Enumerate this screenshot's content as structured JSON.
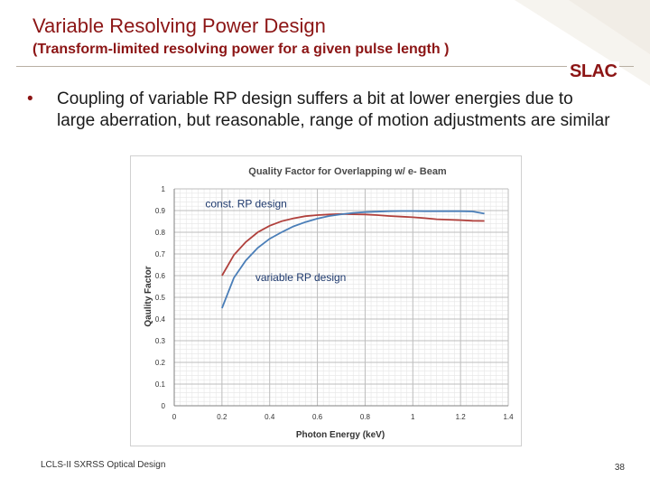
{
  "slide": {
    "title": "Variable Resolving Power Design",
    "subtitle": "(Transform-limited resolving power for a given pulse length )",
    "logo": "SLAC",
    "bullet": "Coupling of variable RP design suffers a bit at lower energies due to large aberration, but reasonable, range of motion adjustments are similar",
    "bullet_marker": "•",
    "footer": "LCLS-II SXRSS Optical Design",
    "page_number": "38"
  },
  "colors": {
    "brand": "#8c1515",
    "series_const": "#b0403c",
    "series_variable": "#4a7eb8"
  },
  "chart_data": {
    "type": "line",
    "title": "Quality Factor for Overlapping w/ e- Beam",
    "xlabel": "Photon Energy (keV)",
    "ylabel": "Qaulity Factor",
    "xlim": [
      0,
      1.4
    ],
    "ylim": [
      0,
      1
    ],
    "x_ticks": [
      "0",
      "0.2",
      "0.4",
      "0.6",
      "0.8",
      "1",
      "1.2",
      "1.4"
    ],
    "y_ticks": [
      "0",
      "0.1",
      "0.2",
      "0.3",
      "0.4",
      "0.5",
      "0.6",
      "0.7",
      "0.8",
      "0.9",
      "1"
    ],
    "series": [
      {
        "name": "const. RP design",
        "x": [
          0.2,
          0.25,
          0.3,
          0.35,
          0.4,
          0.45,
          0.5,
          0.55,
          0.6,
          0.65,
          0.7,
          0.75,
          0.8,
          0.85,
          0.9,
          0.95,
          1.0,
          1.05,
          1.1,
          1.15,
          1.2,
          1.25,
          1.3
        ],
        "values": [
          0.6,
          0.695,
          0.755,
          0.8,
          0.83,
          0.851,
          0.864,
          0.874,
          0.879,
          0.882,
          0.884,
          0.883,
          0.882,
          0.879,
          0.875,
          0.872,
          0.869,
          0.865,
          0.86,
          0.858,
          0.856,
          0.853,
          0.852
        ]
      },
      {
        "name": "variable RP design",
        "x": [
          0.2,
          0.25,
          0.3,
          0.35,
          0.4,
          0.45,
          0.5,
          0.55,
          0.6,
          0.65,
          0.7,
          0.75,
          0.8,
          0.85,
          0.9,
          0.95,
          1.0,
          1.05,
          1.1,
          1.15,
          1.2,
          1.25,
          1.3
        ],
        "values": [
          0.45,
          0.59,
          0.67,
          0.728,
          0.77,
          0.8,
          0.827,
          0.847,
          0.863,
          0.875,
          0.883,
          0.889,
          0.893,
          0.895,
          0.897,
          0.898,
          0.898,
          0.897,
          0.897,
          0.897,
          0.897,
          0.896,
          0.886
        ]
      }
    ],
    "annotations": [
      {
        "text": "const. RP design",
        "x": 0.13,
        "y": 0.915
      },
      {
        "text": "variable RP design",
        "x": 0.34,
        "y": 0.575
      }
    ],
    "grid": true,
    "legend": "none"
  }
}
